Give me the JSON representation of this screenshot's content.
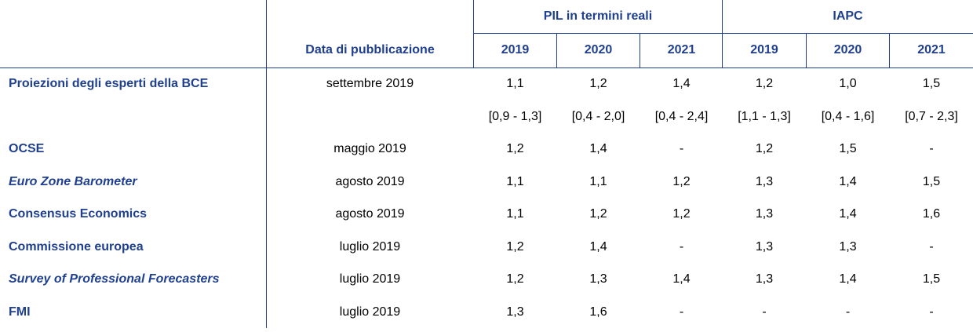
{
  "header": {
    "pub_date_label": "Data di pubblicazione",
    "gdp_group": "PIL in termini reali",
    "hicp_group": "IAPC",
    "years": [
      "2019",
      "2020",
      "2021",
      "2019",
      "2020",
      "2021"
    ]
  },
  "rows": [
    {
      "source": "Proiezioni degli esperti della BCE",
      "italic": false,
      "date": "settembre 2019",
      "values": [
        "1,1",
        "1,2",
        "1,4",
        "1,2",
        "1,0",
        "1,5"
      ]
    },
    {
      "source": "",
      "italic": false,
      "date": "",
      "values": [
        "[0,9 - 1,3]",
        "[0,4 - 2,0]",
        "[0,4 - 2,4]",
        "[1,1 - 1,3]",
        "[0,4 - 1,6]",
        "[0,7 - 2,3]"
      ]
    },
    {
      "source": "OCSE",
      "italic": false,
      "date": "maggio 2019",
      "values": [
        "1,2",
        "1,4",
        "-",
        "1,2",
        "1,5",
        "-"
      ]
    },
    {
      "source": "Euro Zone Barometer",
      "italic": true,
      "date": "agosto 2019",
      "values": [
        "1,1",
        "1,1",
        "1,2",
        "1,3",
        "1,4",
        "1,5"
      ]
    },
    {
      "source": "Consensus Economics",
      "italic": false,
      "date": "agosto 2019",
      "values": [
        "1,1",
        "1,2",
        "1,2",
        "1,3",
        "1,4",
        "1,6"
      ]
    },
    {
      "source": "Commissione europea",
      "italic": false,
      "date": "luglio 2019",
      "values": [
        "1,2",
        "1,4",
        "-",
        "1,3",
        "1,3",
        "-"
      ]
    },
    {
      "source": "Survey of Professional Forecasters",
      "italic": true,
      "date": "luglio 2019",
      "values": [
        "1,2",
        "1,3",
        "1,4",
        "1,3",
        "1,4",
        "1,5"
      ]
    },
    {
      "source": "FMI",
      "italic": false,
      "date": "luglio 2019",
      "values": [
        "1,3",
        "1,6",
        "-",
        "-",
        "-",
        "-"
      ]
    }
  ]
}
